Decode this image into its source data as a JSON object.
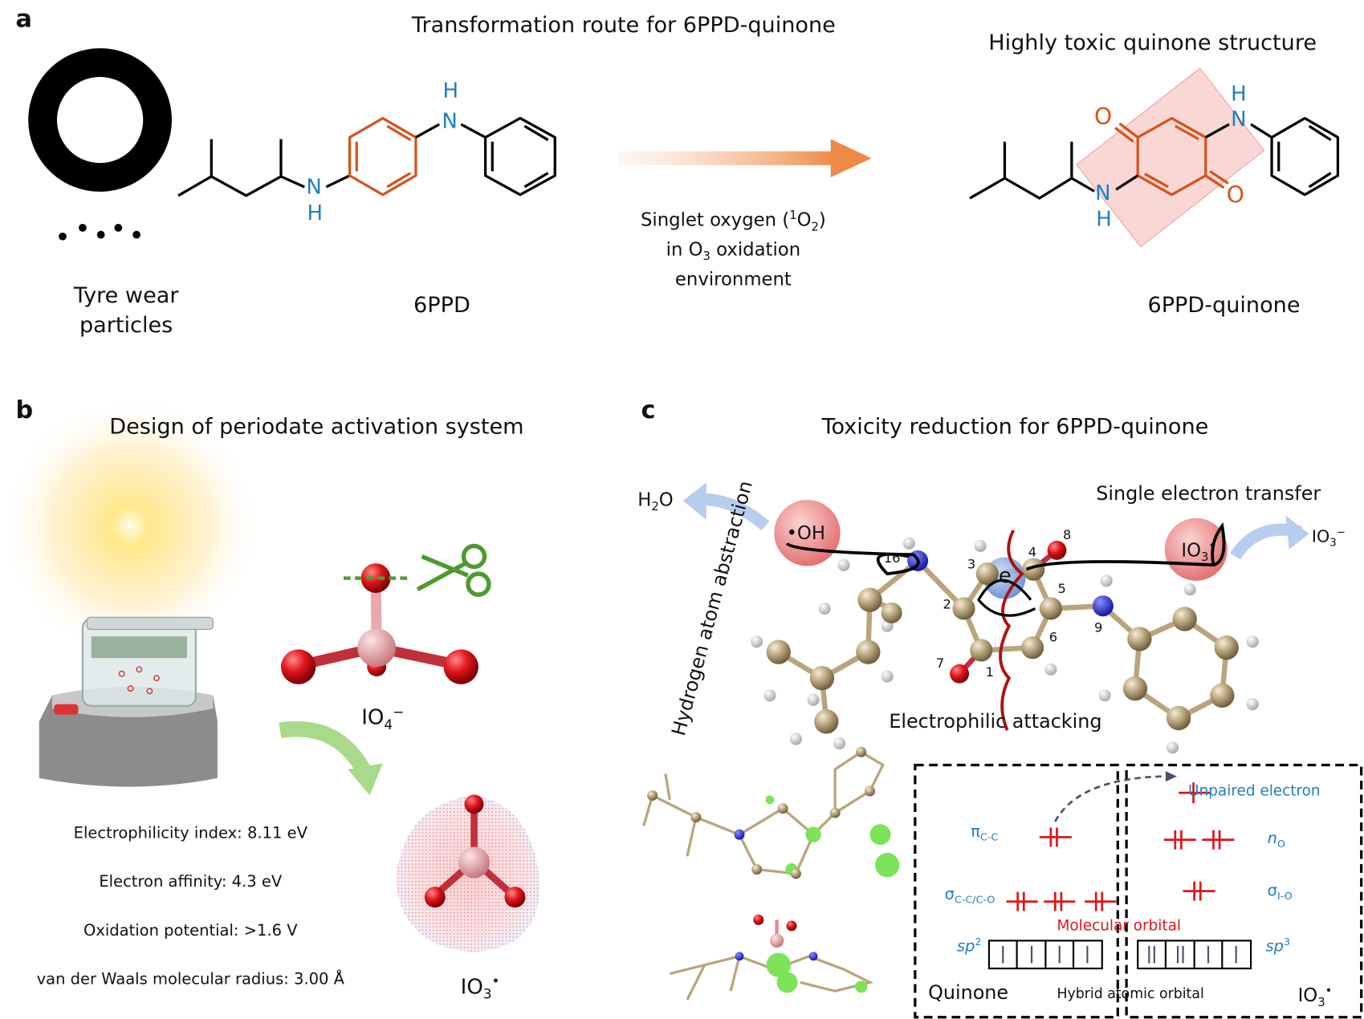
{
  "panel_a": {
    "label": "a",
    "title": "Transformation route for 6PPD-quinone",
    "subtitle_right": "Highly toxic quinone structure",
    "tyre_label": "Tyre wear particles",
    "compound_label": "6PPD",
    "product_label": "6PPD-quinone",
    "condition_line1_pre": "Singlet oxygen (",
    "condition_sup": "1",
    "condition_mid": "O",
    "condition_sub": "2",
    "condition_post": ")",
    "condition_line2_pre": "in O",
    "condition_line2_sub": "3",
    "condition_line2_post": " oxidation",
    "condition_line3": "environment",
    "atoms": {
      "N": "N",
      "H": "H",
      "O": "O"
    }
  },
  "panel_b": {
    "label": "b",
    "title": "Design of periodate activation system",
    "io4_label": "IO",
    "io4_sub": "4",
    "io4_sup": "−",
    "io3_label": "IO",
    "io3_sub": "3",
    "io3_sup": "•",
    "properties": [
      "Electrophilicity index: 8.11 eV",
      "Electron affinity: 4.3 eV",
      "Oxidation potential: >1.6 V",
      "van der Waals molecular radius: 3.00 Å"
    ]
  },
  "panel_c": {
    "label": "c",
    "title": "Toxicity reduction for 6PPD-quinone",
    "h2o": "H",
    "h2o_sub": "2",
    "h2o_post": "O",
    "hat_label": "Hydrogen atom abstraction",
    "oh_radical": "•OH",
    "set_label": "Single electron transfer",
    "io3_radical": "IO",
    "io3_radical_sub": "3",
    "io3_radical_sup": "•",
    "io3_anion": "IO",
    "io3_anion_sub": "3",
    "io3_anion_sup": "−",
    "electron": "e",
    "atom_numbers": [
      "1",
      "2",
      "3",
      "4",
      "5",
      "6",
      "7",
      "8",
      "9",
      "16"
    ],
    "electrophilic_label": "Electrophilic attacking",
    "orbital_diagram": {
      "unpaired": "Unpaired electron",
      "pi_cc": "π",
      "pi_cc_sub": "C-C",
      "n_o": "n",
      "n_o_sub": "O",
      "sigma_cc": "σ",
      "sigma_cc_sub": "C-C/C-O",
      "sigma_io": "σ",
      "sigma_io_sub": "I-O",
      "molecular_orbital": "Molecular orbital",
      "sp2": "sp",
      "sp2_sup": "2",
      "sp3": "sp",
      "sp3_sup": "3",
      "quinone": "Quinone",
      "hybrid": "Hybrid atomic orbital",
      "io3": "IO",
      "io3_sub": "3",
      "io3_sup": "•"
    }
  },
  "colors": {
    "orange": "#d4541c",
    "nitrogen_blue": "#1f7fc0",
    "red": "#e0141b",
    "highlight_pink": "#f4b6b2"
  }
}
